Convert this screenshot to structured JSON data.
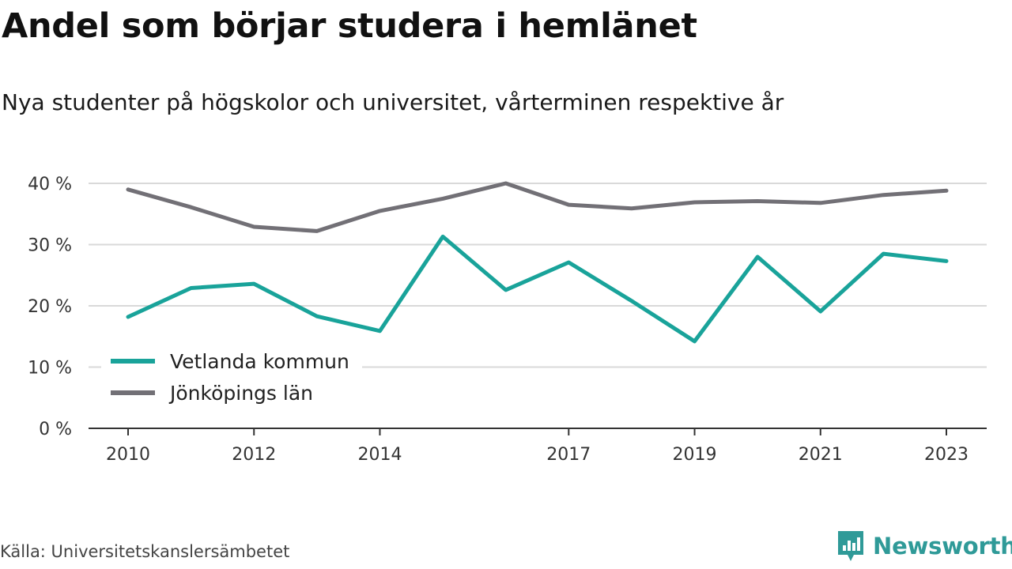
{
  "title": "Andel som börjar studera i hemlänet",
  "subtitle": "Nya studenter på högskolor och universitet, vårterminen respektive år",
  "source": "Källa: Universitetskanslersämbetet",
  "brand": {
    "name": "Newsworthy",
    "icon": "newsworthy-logo-icon",
    "color": "#2f9a98"
  },
  "chart_data": {
    "type": "line",
    "x": [
      2010,
      2011,
      2012,
      2013,
      2014,
      2015,
      2016,
      2017,
      2018,
      2019,
      2020,
      2021,
      2022,
      2023
    ],
    "x_tick_labels": [
      "2010",
      "2012",
      "2014",
      "2017",
      "2019",
      "2021",
      "2023"
    ],
    "y_tick_labels": [
      "0 %",
      "10 %",
      "20 %",
      "30 %",
      "40 %"
    ],
    "ylim": [
      0,
      40
    ],
    "grid": true,
    "legend_position": "lower-left",
    "series": [
      {
        "name": "Vetlanda kommun",
        "color": "#19a39a",
        "values": [
          18.2,
          22.9,
          23.6,
          18.3,
          15.9,
          31.3,
          22.6,
          27.1,
          20.8,
          14.2,
          28.0,
          19.1,
          28.5,
          27.3
        ]
      },
      {
        "name": "Jönköpings län",
        "color": "#727076",
        "values": [
          39.0,
          36.1,
          32.9,
          32.2,
          35.5,
          37.5,
          40.0,
          36.5,
          35.9,
          36.9,
          37.1,
          36.8,
          38.1,
          38.8
        ]
      }
    ]
  }
}
